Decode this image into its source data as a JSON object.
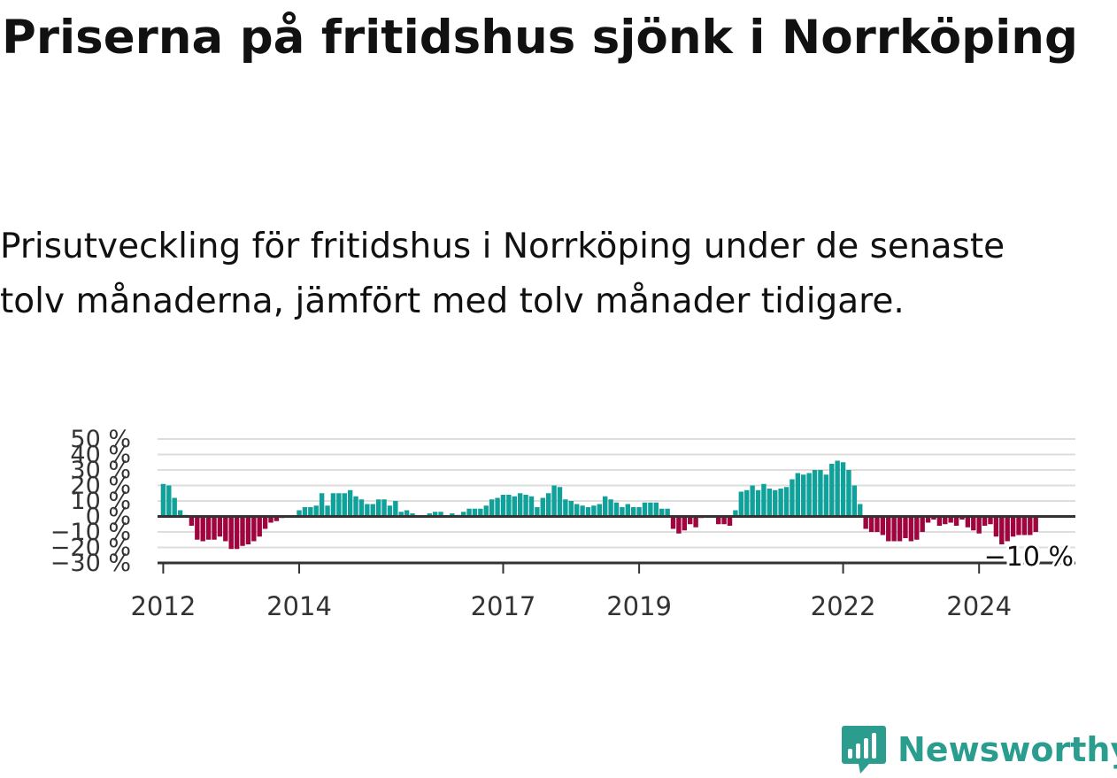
{
  "title": "Priserna på fritidshus sjönk i Norrköping",
  "subtitle": "Prisutveckling för fritidshus i Norrköping under de senaste tolv månaderna, jämfört med tolv månader tidigare.",
  "logo": {
    "name": "Newsworthy",
    "icon": "bar-chart-bubble-icon"
  },
  "colors": {
    "positive": "#10a19a",
    "negative": "#a0043f",
    "grid": "#dddddd",
    "axis": "#333333",
    "brand": "#2a9d8f"
  },
  "chart_data": {
    "type": "bar",
    "ylabel": "",
    "xlabel": "",
    "ylim": [
      -30,
      50
    ],
    "y_ticks": [
      50,
      40,
      30,
      20,
      10,
      0,
      -10,
      -20,
      -30
    ],
    "y_tick_labels": [
      "50 %",
      "40 %",
      "30 %",
      "20 %",
      "10 %",
      "0 %",
      "−10 %",
      "−20 %",
      "−30 %"
    ],
    "x_start": "2011-12",
    "x_end": "2025-06",
    "x_ticks": [
      "2012",
      "2014",
      "2017",
      "2019",
      "2022",
      "2024"
    ],
    "last_value_label": "−10 %",
    "grid": true,
    "series": [
      {
        "start_month": "2012-01",
        "values": [
          21,
          20,
          12,
          4,
          1,
          -6,
          -15,
          -16,
          -15,
          -15,
          -13,
          -16,
          -21,
          -21,
          -19,
          -18,
          -16,
          -13,
          -8,
          -4,
          -3,
          -1,
          0,
          0,
          4,
          6,
          6,
          7,
          15,
          7,
          15,
          15,
          15,
          17,
          13,
          11,
          8,
          8,
          11,
          11,
          7,
          10,
          3,
          4,
          2,
          0,
          0,
          2,
          3,
          3,
          0,
          2,
          1,
          3,
          5,
          5,
          5,
          7,
          11,
          12,
          14,
          14,
          13,
          15,
          14,
          13,
          6,
          12,
          15,
          20,
          19,
          11,
          10,
          8,
          7,
          6,
          7,
          8,
          13,
          11,
          9,
          6,
          8,
          6,
          6,
          9,
          9,
          9,
          5,
          5,
          -8,
          -11,
          -9,
          -5,
          -7,
          -1,
          0,
          0,
          -5,
          -5,
          -6,
          4,
          16,
          17,
          20,
          17,
          21,
          18,
          17,
          18,
          19,
          24,
          28,
          27,
          28,
          30,
          30,
          27,
          34,
          36,
          35,
          30,
          20,
          8,
          -8,
          -10,
          -10,
          -12,
          -16,
          -16,
          -16,
          -14,
          -16,
          -15,
          -10,
          -4,
          -2,
          -6,
          -5,
          -4,
          -6,
          -2,
          -7,
          -9,
          -11,
          -6,
          -5,
          -13,
          -18,
          -16,
          -13,
          -12,
          -12,
          -12,
          -10
        ]
      }
    ]
  }
}
